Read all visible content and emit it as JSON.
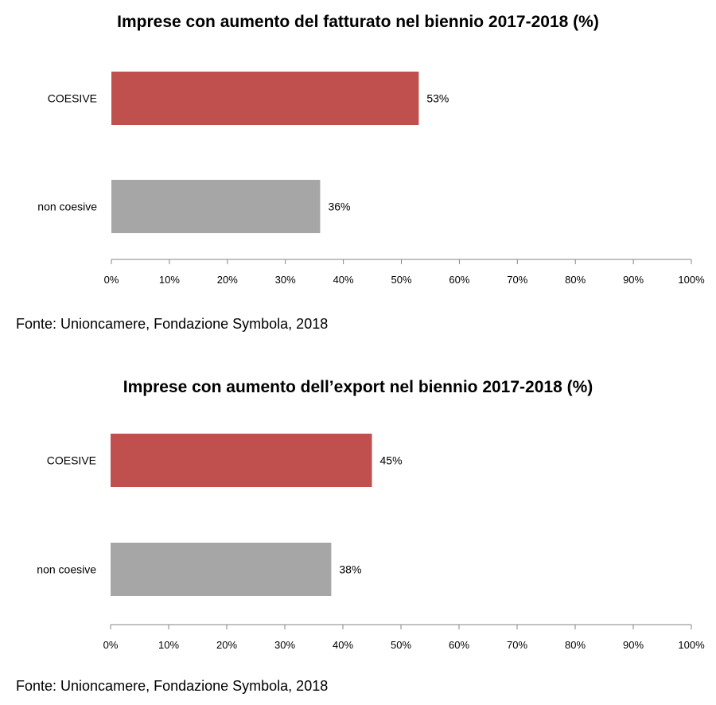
{
  "chart_data": [
    {
      "type": "bar",
      "orientation": "horizontal",
      "title": "Imprese con aumento del fatturato nel biennio 2017-2018 (%)",
      "categories": [
        "COESIVE",
        "non coesive"
      ],
      "values": [
        53,
        36
      ],
      "value_labels": [
        "53%",
        "36%"
      ],
      "colors": [
        "#c0504d",
        "#a6a6a6"
      ],
      "xlim": [
        0,
        100
      ],
      "x_ticks": [
        "0%",
        "10%",
        "20%",
        "30%",
        "40%",
        "50%",
        "60%",
        "70%",
        "80%",
        "90%",
        "100%"
      ],
      "grid": false,
      "source": "Fonte: Unioncamere, Fondazione Symbola, 2018"
    },
    {
      "type": "bar",
      "orientation": "horizontal",
      "title": "Imprese con aumento dell’export nel biennio 2017-2018 (%)",
      "categories": [
        "COESIVE",
        "non coesive"
      ],
      "values": [
        45,
        38
      ],
      "value_labels": [
        "45%",
        "38%"
      ],
      "colors": [
        "#c0504d",
        "#a6a6a6"
      ],
      "xlim": [
        0,
        100
      ],
      "x_ticks": [
        "0%",
        "10%",
        "20%",
        "30%",
        "40%",
        "50%",
        "60%",
        "70%",
        "80%",
        "90%",
        "100%"
      ],
      "grid": false,
      "source": "Fonte: Unioncamere, Fondazione Symbola, 2018"
    }
  ]
}
